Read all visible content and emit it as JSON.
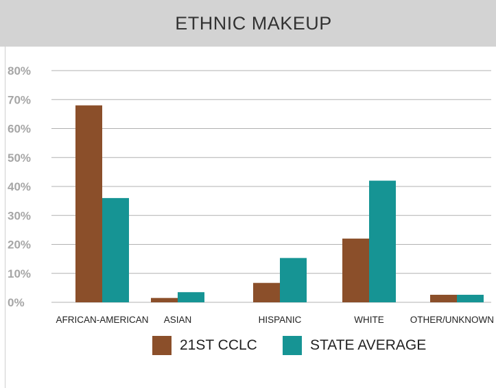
{
  "header": {
    "title": "ETHNIC MAKEUP"
  },
  "colors": {
    "series_1": "#8b4f2a",
    "series_2": "#169494",
    "grid": "#b0b0b0",
    "tick": "#a6a6a6"
  },
  "legend": [
    {
      "label": "21ST CCLC",
      "color": "#8b4f2a"
    },
    {
      "label": "STATE AVERAGE",
      "color": "#169494"
    }
  ],
  "chart_data": {
    "type": "bar",
    "title": "ETHNIC MAKEUP",
    "categories": [
      "AFRICAN-AMERICAN",
      "ASIAN",
      "HISPANIC",
      "WHITE",
      "OTHER/UNKNOWN"
    ],
    "series": [
      {
        "name": "21ST CCLC",
        "values": [
          68,
          1.5,
          6.7,
          22,
          2.6
        ]
      },
      {
        "name": "STATE AVERAGE",
        "values": [
          36,
          3.5,
          15.3,
          42,
          2.6
        ]
      }
    ],
    "yticks": [
      "0%",
      "10%",
      "20%",
      "30%",
      "40%",
      "50%",
      "60%",
      "70%",
      "80%"
    ],
    "ylim": [
      0,
      80
    ],
    "xlabel": "",
    "ylabel": "",
    "grid": true,
    "legend_position": "bottom"
  }
}
